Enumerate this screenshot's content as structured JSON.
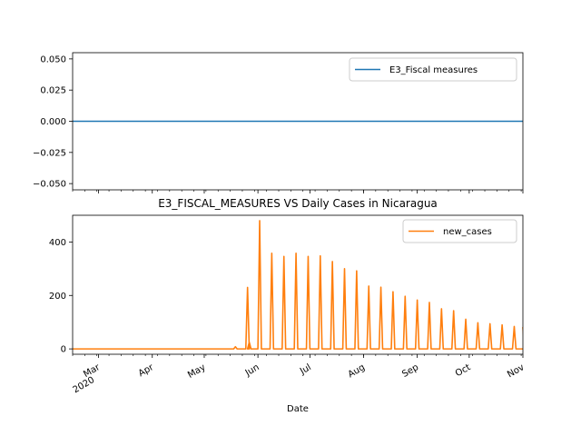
{
  "chart_data": [
    {
      "type": "line",
      "title": "",
      "xlabel": "",
      "ylabel": "",
      "ylim": [
        -0.055,
        0.055
      ],
      "yticks": [
        -0.05,
        -0.025,
        0.0,
        0.025,
        0.05
      ],
      "ytick_labels": [
        "−0.050",
        "−0.025",
        "0.000",
        "0.025",
        "0.050"
      ],
      "legend_position": "upper-right",
      "series": [
        {
          "name": "E3_Fiscal measures",
          "color": "#1f77b4",
          "x": [
            "2020-02-15",
            "2020-11-01"
          ],
          "y": [
            0,
            0
          ]
        }
      ]
    },
    {
      "type": "line",
      "title": "E3_FISCAL_MEASURES VS Daily Cases in Nicaragua",
      "xlabel": "Date",
      "ylabel": "",
      "ylim": [
        -20,
        500
      ],
      "yticks": [
        0,
        200,
        400
      ],
      "ytick_labels": [
        "0",
        "200",
        "400"
      ],
      "xlim": [
        "2020-02-15",
        "2020-11-01"
      ],
      "x_ticks": [
        {
          "date": "2020-03-01",
          "label": "Mar",
          "sublabel": "2020"
        },
        {
          "date": "2020-04-01",
          "label": "Apr"
        },
        {
          "date": "2020-05-01",
          "label": "May"
        },
        {
          "date": "2020-06-01",
          "label": "Jun"
        },
        {
          "date": "2020-07-01",
          "label": "Jul"
        },
        {
          "date": "2020-08-01",
          "label": "Aug"
        },
        {
          "date": "2020-09-01",
          "label": "Sep"
        },
        {
          "date": "2020-10-01",
          "label": "Oct"
        },
        {
          "date": "2020-11-01",
          "label": "Nov"
        }
      ],
      "legend_position": "upper-right",
      "series": [
        {
          "name": "new_cases",
          "color": "#ff7f0e",
          "baseline": 0,
          "spikes": [
            {
              "date": "2020-05-19",
              "value": 8
            },
            {
              "date": "2020-05-26",
              "value": 230
            },
            {
              "date": "2020-05-27",
              "value": 25
            },
            {
              "date": "2020-06-02",
              "value": 480
            },
            {
              "date": "2020-06-09",
              "value": 358
            },
            {
              "date": "2020-06-16",
              "value": 346
            },
            {
              "date": "2020-06-23",
              "value": 358
            },
            {
              "date": "2020-06-30",
              "value": 346
            },
            {
              "date": "2020-07-07",
              "value": 348
            },
            {
              "date": "2020-07-14",
              "value": 327
            },
            {
              "date": "2020-07-21",
              "value": 300
            },
            {
              "date": "2020-07-28",
              "value": 292
            },
            {
              "date": "2020-08-04",
              "value": 235
            },
            {
              "date": "2020-08-11",
              "value": 231
            },
            {
              "date": "2020-08-18",
              "value": 214
            },
            {
              "date": "2020-08-25",
              "value": 197
            },
            {
              "date": "2020-09-01",
              "value": 183
            },
            {
              "date": "2020-09-08",
              "value": 174
            },
            {
              "date": "2020-09-15",
              "value": 150
            },
            {
              "date": "2020-09-22",
              "value": 143
            },
            {
              "date": "2020-09-29",
              "value": 111
            },
            {
              "date": "2020-10-06",
              "value": 98
            },
            {
              "date": "2020-10-13",
              "value": 94
            },
            {
              "date": "2020-10-20",
              "value": 90
            },
            {
              "date": "2020-10-27",
              "value": 84
            },
            {
              "date": "2020-11-03",
              "value": 80
            }
          ]
        }
      ]
    }
  ]
}
